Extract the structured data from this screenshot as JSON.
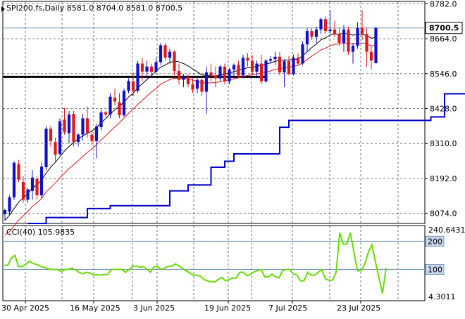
{
  "chart_data": [
    {
      "type": "candlestick",
      "title": "SPI200.fs,Daily  8581.0 8704.0 8581.0 8700.5",
      "symbol": "SPI200.fs,Daily",
      "ohlc_header": [
        "8581.0",
        "8704.0",
        "8581.0",
        "8700.5"
      ],
      "current_price_label": "8700.5",
      "y_ticks": [
        "8782.0",
        "8664.0",
        "8546.0",
        "8428.0",
        "8310.0",
        "8192.0",
        "8074.0"
      ],
      "x_ticks": [
        "30 Apr 2025",
        "16 May 2025",
        "3 Jun 2025",
        "19 Jun 2025",
        "7 Jul 2025",
        "23 Jul 2025"
      ],
      "ylim": [
        8040,
        8790
      ],
      "grid": true,
      "colors": {
        "up": "#1010c8",
        "down": "#e01818",
        "fast_ma": "#000000",
        "slow_ma": "#e01818",
        "stop": "#0000cc",
        "level": "#000000",
        "price_badge": "#ffffff"
      },
      "candles": [
        [
          8071,
          8090,
          8051,
          8085
        ],
        [
          8080,
          8135,
          8070,
          8128
        ],
        [
          8128,
          8250,
          8120,
          8245
        ],
        [
          8240,
          8255,
          8180,
          8188
        ],
        [
          8180,
          8200,
          8110,
          8120
        ],
        [
          8120,
          8160,
          8110,
          8155
        ],
        [
          8150,
          8220,
          8120,
          8195
        ],
        [
          8190,
          8200,
          8120,
          8135
        ],
        [
          8135,
          8245,
          8125,
          8232
        ],
        [
          8230,
          8370,
          8220,
          8360
        ],
        [
          8360,
          8370,
          8300,
          8318
        ],
        [
          8315,
          8330,
          8250,
          8272
        ],
        [
          8275,
          8395,
          8270,
          8385
        ],
        [
          8390,
          8430,
          8340,
          8348
        ],
        [
          8345,
          8420,
          8310,
          8408
        ],
        [
          8410,
          8420,
          8300,
          8315
        ],
        [
          8315,
          8345,
          8300,
          8340
        ],
        [
          8340,
          8410,
          8320,
          8395
        ],
        [
          8395,
          8435,
          8330,
          8345
        ],
        [
          8340,
          8350,
          8305,
          8318
        ],
        [
          8318,
          8375,
          8260,
          8368
        ],
        [
          8365,
          8425,
          8355,
          8415
        ],
        [
          8415,
          8420,
          8400,
          8408
        ],
        [
          8408,
          8480,
          8395,
          8468
        ],
        [
          8465,
          8495,
          8440,
          8452
        ],
        [
          8450,
          8480,
          8395,
          8405
        ],
        [
          8405,
          8495,
          8400,
          8488
        ],
        [
          8488,
          8530,
          8480,
          8521
        ],
        [
          8520,
          8550,
          8470,
          8488
        ],
        [
          8488,
          8590,
          8480,
          8580
        ],
        [
          8580,
          8600,
          8520,
          8553
        ],
        [
          8553,
          8590,
          8530,
          8570
        ],
        [
          8570,
          8580,
          8540,
          8552
        ],
        [
          8552,
          8600,
          8550,
          8585
        ],
        [
          8585,
          8650,
          8575,
          8642
        ],
        [
          8642,
          8650,
          8590,
          8600
        ],
        [
          8600,
          8630,
          8580,
          8620
        ],
        [
          8620,
          8625,
          8540,
          8555
        ],
        [
          8555,
          8580,
          8510,
          8525
        ],
        [
          8525,
          8545,
          8500,
          8535
        ],
        [
          8535,
          8545,
          8500,
          8510
        ],
        [
          8510,
          8530,
          8480,
          8492
        ],
        [
          8495,
          8535,
          8480,
          8525
        ],
        [
          8525,
          8530,
          8470,
          8485
        ],
        [
          8485,
          8570,
          8410,
          8550
        ],
        [
          8550,
          8580,
          8520,
          8540
        ],
        [
          8540,
          8570,
          8500,
          8530
        ],
        [
          8530,
          8575,
          8520,
          8570
        ],
        [
          8570,
          8580,
          8510,
          8520
        ],
        [
          8520,
          8565,
          8510,
          8560
        ],
        [
          8560,
          8580,
          8530,
          8575
        ],
        [
          8575,
          8590,
          8530,
          8540
        ],
        [
          8540,
          8610,
          8530,
          8600
        ],
        [
          8600,
          8615,
          8570,
          8590
        ],
        [
          8590,
          8610,
          8540,
          8552
        ],
        [
          8552,
          8590,
          8530,
          8580
        ],
        [
          8580,
          8610,
          8510,
          8520
        ],
        [
          8520,
          8595,
          8515,
          8590
        ],
        [
          8590,
          8605,
          8580,
          8595
        ],
        [
          8595,
          8620,
          8575,
          8603
        ],
        [
          8603,
          8620,
          8540,
          8550
        ],
        [
          8550,
          8595,
          8500,
          8588
        ],
        [
          8588,
          8605,
          8540,
          8545
        ],
        [
          8545,
          8610,
          8540,
          8600
        ],
        [
          8600,
          8615,
          8575,
          8580
        ],
        [
          8580,
          8655,
          8575,
          8645
        ],
        [
          8645,
          8700,
          8620,
          8690
        ],
        [
          8690,
          8700,
          8660,
          8670
        ],
        [
          8670,
          8705,
          8650,
          8695
        ],
        [
          8695,
          8735,
          8680,
          8730
        ],
        [
          8730,
          8740,
          8680,
          8690
        ],
        [
          8690,
          8760,
          8680,
          8695
        ],
        [
          8695,
          8725,
          8670,
          8680
        ],
        [
          8680,
          8700,
          8640,
          8650
        ],
        [
          8650,
          8710,
          8620,
          8695
        ],
        [
          8695,
          8705,
          8610,
          8620
        ],
        [
          8620,
          8650,
          8580,
          8640
        ],
        [
          8640,
          8720,
          8630,
          8700
        ],
        [
          8700,
          8760,
          8660,
          8680
        ],
        [
          8680,
          8700,
          8570,
          8620
        ],
        [
          8620,
          8640,
          8560,
          8590
        ],
        [
          8581,
          8704,
          8581,
          8700.5
        ]
      ],
      "fast_ma": [
        8050,
        8068,
        8090,
        8112,
        8126,
        8142,
        8160,
        8170,
        8186,
        8210,
        8230,
        8246,
        8266,
        8285,
        8300,
        8313,
        8326,
        8336,
        8344,
        8352,
        8364,
        8380,
        8394,
        8410,
        8424,
        8436,
        8450,
        8467,
        8480,
        8498,
        8512,
        8526,
        8540,
        8554,
        8568,
        8575,
        8584,
        8588,
        8586,
        8580,
        8572,
        8562,
        8552,
        8542,
        8540,
        8538,
        8538,
        8541,
        8545,
        8548,
        8553,
        8557,
        8561,
        8566,
        8567,
        8571,
        8574,
        8578,
        8582,
        8588,
        8590,
        8592,
        8592,
        8594,
        8596,
        8606,
        8620,
        8634,
        8646,
        8660,
        8667,
        8676,
        8680,
        8680,
        8682,
        8680,
        8676,
        8678,
        8680,
        8674,
        8666,
        8668
      ],
      "slow_ma": [
        8000,
        8012,
        8032,
        8052,
        8066,
        8080,
        8098,
        8110,
        8124,
        8146,
        8162,
        8176,
        8194,
        8210,
        8226,
        8238,
        8252,
        8266,
        8280,
        8292,
        8306,
        8322,
        8336,
        8352,
        8366,
        8380,
        8396,
        8412,
        8426,
        8442,
        8456,
        8470,
        8484,
        8496,
        8510,
        8518,
        8526,
        8530,
        8531,
        8530,
        8528,
        8524,
        8520,
        8515,
        8515,
        8515,
        8516,
        8519,
        8522,
        8525,
        8528,
        8532,
        8536,
        8540,
        8542,
        8545,
        8548,
        8551,
        8555,
        8560,
        8563,
        8566,
        8568,
        8571,
        8574,
        8582,
        8594,
        8605,
        8615,
        8626,
        8632,
        8640,
        8645,
        8646,
        8648,
        8648,
        8646,
        8648,
        8650,
        8646,
        8640,
        8642
      ],
      "stop_line": [
        [
          5,
          8040
        ],
        [
          9,
          8040
        ],
        [
          9,
          8060
        ],
        [
          18,
          8060
        ],
        [
          18,
          8090
        ],
        [
          23,
          8090
        ],
        [
          23,
          8100
        ],
        [
          36,
          8100
        ],
        [
          36,
          8150
        ],
        [
          40,
          8150
        ],
        [
          40,
          8170
        ],
        [
          45,
          8170
        ],
        [
          45,
          8230
        ],
        [
          48,
          8230
        ],
        [
          48,
          8250
        ],
        [
          50,
          8250
        ],
        [
          50,
          8275
        ],
        [
          60,
          8275
        ],
        [
          60,
          8365
        ],
        [
          62,
          8365
        ],
        [
          62,
          8388
        ],
        [
          93,
          8388
        ],
        [
          93,
          8400
        ],
        [
          96,
          8400
        ],
        [
          96,
          8478
        ],
        [
          112,
          8478
        ]
      ],
      "level_line": {
        "value": 8540,
        "from": 0,
        "to": 56
      }
    },
    {
      "type": "line",
      "title": "CCI(40) 105.9835",
      "label": "CCI(40)",
      "last_value_text": "105.9835",
      "y_ticks": [
        "240.6431",
        "4.3011"
      ],
      "levels": [
        "200",
        "100"
      ],
      "ylim": [
        4.3011,
        240.6431
      ],
      "grid": true,
      "colors": {
        "line": "#66dd00",
        "level": "#7799bb"
      },
      "values": [
        115,
        115,
        140,
        150,
        110,
        110,
        118,
        130,
        122,
        118,
        112,
        108,
        104,
        100,
        100,
        100,
        92,
        100,
        100,
        105,
        98,
        90,
        85,
        90,
        88,
        80,
        82,
        80,
        82,
        82,
        100,
        100,
        100,
        100,
        90,
        100,
        112,
        112,
        108,
        110,
        100,
        90,
        110,
        110,
        100,
        105,
        112,
        112,
        120,
        112,
        104,
        95,
        88,
        80,
        80,
        76,
        64,
        60,
        56,
        56,
        65,
        72,
        60,
        64,
        70,
        70,
        90,
        90,
        78,
        82,
        92,
        96,
        100,
        74,
        74,
        84,
        74,
        70,
        96,
        100,
        100,
        84,
        80,
        60,
        60,
        90,
        80,
        80,
        90,
        100,
        66,
        62,
        62,
        90,
        230,
        190,
        190,
        230,
        160,
        95,
        95,
        118,
        160,
        188,
        128,
        70,
        15,
        105.9835
      ]
    }
  ]
}
